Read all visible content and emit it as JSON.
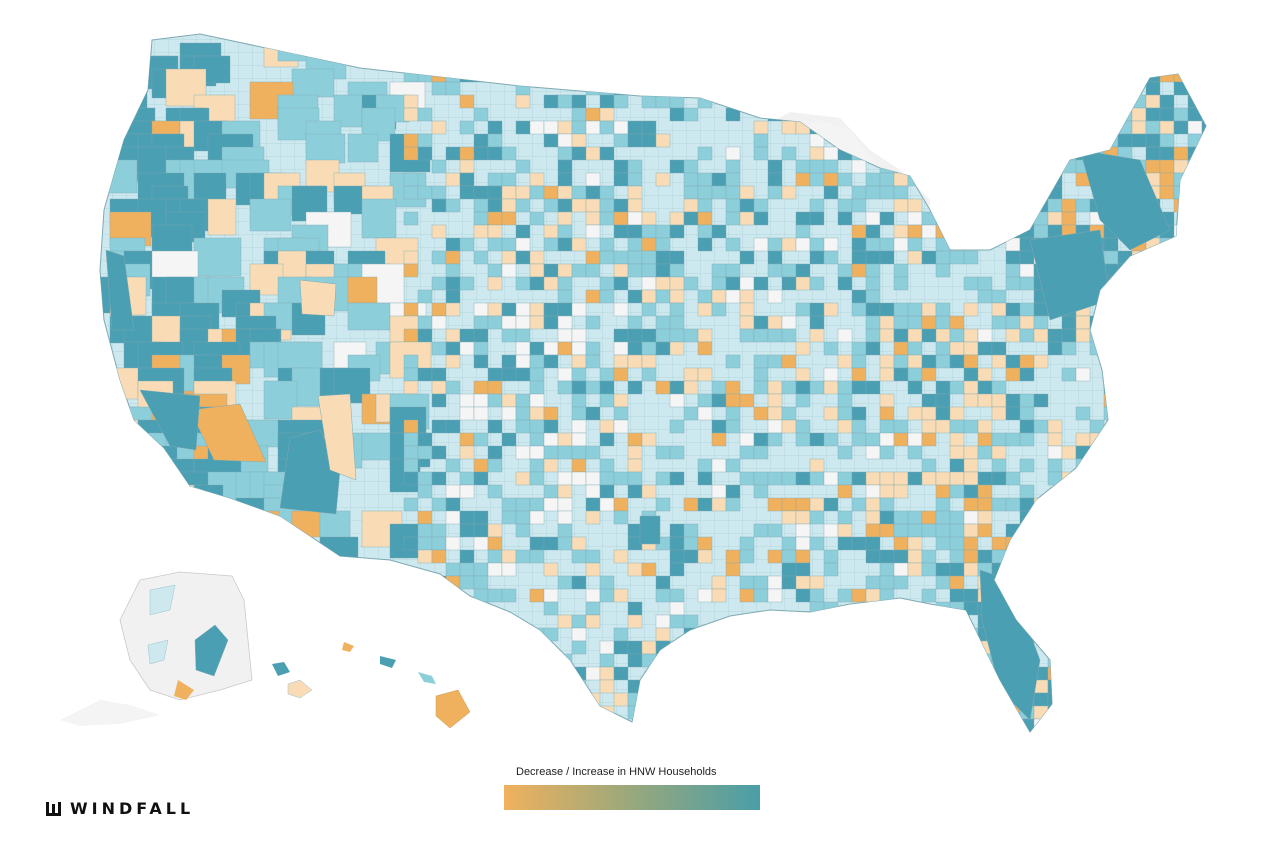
{
  "legend": {
    "title": "Decrease / Increase in HNW Households",
    "color_low": "#f0b15e",
    "color_high": "#4a9ea8"
  },
  "brand": {
    "name": "WINDFALL",
    "icon": "windfall-logo-icon"
  },
  "colors": {
    "strong_increase": "#4a9fb2",
    "moderate_increase": "#8ccfda",
    "slight_increase": "#cde9ef",
    "neutral": "#f5f5f5",
    "slight_decrease": "#f9dcb5",
    "strong_decrease": "#f0b15e",
    "land_outline": "#7fa9b3",
    "canada_background": "#f1f1f1"
  }
}
